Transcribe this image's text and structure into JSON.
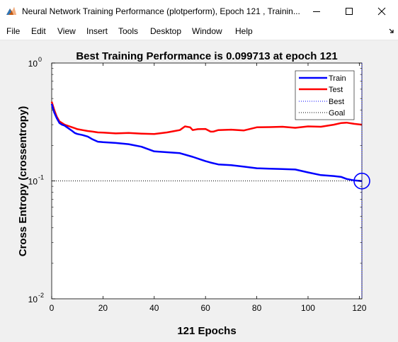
{
  "window": {
    "title": "Neural Network Training Performance (plotperform), Epoch 121 , Trainin...",
    "icons": {
      "app": "matlab-figure-icon",
      "minimize": "minimize-icon",
      "maximize": "maximize-icon",
      "close": "close-icon",
      "toolbar_toggle": "dock-arrow-icon"
    }
  },
  "menu": [
    "File",
    "Edit",
    "View",
    "Insert",
    "Tools",
    "Desktop",
    "Window",
    "Help"
  ],
  "colors": {
    "train": "#0000ff",
    "test": "#ff0000",
    "best_marker": "#0000ff",
    "guides": "#000000"
  },
  "chart_data": {
    "type": "line",
    "title": "Best Training Performance is 0.099713 at epoch 121",
    "xlabel": "121 Epochs",
    "ylabel": "Cross Entropy  (crossentropy)",
    "xlim": [
      0,
      121
    ],
    "ylim": [
      0.01,
      1
    ],
    "yscale": "log",
    "xticks": [
      0,
      20,
      40,
      60,
      80,
      100,
      120
    ],
    "yticks": [
      {
        "base": "10",
        "exp": "-2"
      },
      {
        "base": "10",
        "exp": "-1"
      },
      {
        "base": "10",
        "exp": "0"
      }
    ],
    "grid": false,
    "legend_position": "top-right",
    "legend": [
      "Train",
      "Test",
      "Best",
      "Goal"
    ],
    "best": {
      "epoch": 121,
      "value": 0.099713
    },
    "goal": 0.1,
    "series": [
      {
        "name": "Train",
        "x": [
          0,
          1,
          2,
          3,
          4,
          5,
          6,
          7,
          8,
          9,
          10,
          12,
          14,
          16,
          18,
          20,
          25,
          30,
          35,
          40,
          45,
          50,
          55,
          58,
          60,
          62,
          65,
          70,
          75,
          80,
          85,
          90,
          95,
          100,
          105,
          110,
          113,
          115,
          118,
          121
        ],
        "y": [
          0.45,
          0.38,
          0.34,
          0.31,
          0.3,
          0.295,
          0.285,
          0.275,
          0.265,
          0.255,
          0.25,
          0.245,
          0.238,
          0.225,
          0.215,
          0.213,
          0.21,
          0.205,
          0.195,
          0.178,
          0.175,
          0.172,
          0.16,
          0.152,
          0.147,
          0.143,
          0.138,
          0.136,
          0.132,
          0.128,
          0.127,
          0.126,
          0.125,
          0.118,
          0.112,
          0.11,
          0.108,
          0.104,
          0.101,
          0.099713
        ]
      },
      {
        "name": "Test",
        "x": [
          0,
          1,
          2,
          3,
          4,
          5,
          6,
          7,
          8,
          9,
          10,
          12,
          14,
          16,
          18,
          20,
          25,
          30,
          35,
          40,
          45,
          48,
          50,
          52,
          54,
          55,
          57,
          60,
          62,
          63,
          65,
          70,
          75,
          80,
          85,
          90,
          95,
          100,
          105,
          110,
          113,
          115,
          118,
          121
        ],
        "y": [
          0.47,
          0.4,
          0.35,
          0.32,
          0.31,
          0.3,
          0.295,
          0.29,
          0.285,
          0.28,
          0.275,
          0.27,
          0.265,
          0.262,
          0.258,
          0.257,
          0.253,
          0.255,
          0.252,
          0.25,
          0.258,
          0.265,
          0.27,
          0.29,
          0.285,
          0.27,
          0.275,
          0.276,
          0.262,
          0.262,
          0.27,
          0.272,
          0.268,
          0.285,
          0.286,
          0.288,
          0.282,
          0.29,
          0.288,
          0.3,
          0.31,
          0.312,
          0.305,
          0.3
        ]
      }
    ]
  }
}
